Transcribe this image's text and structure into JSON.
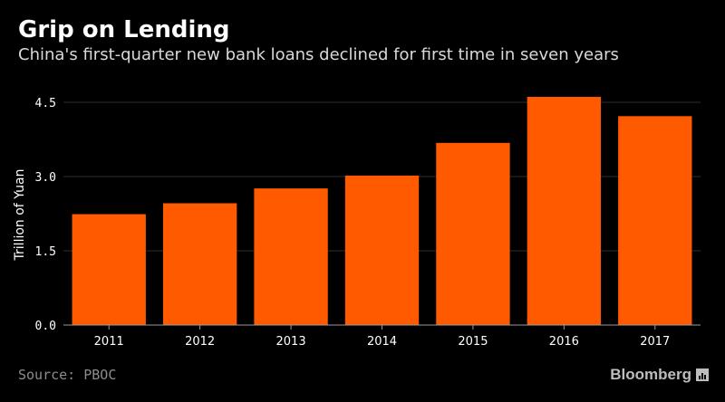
{
  "chart_data": {
    "type": "bar",
    "title": "Grip on Lending",
    "subtitle": "China's first-quarter new bank loans declined for first time in seven years",
    "ylabel": "Trillion of Yuan",
    "xlabel": "",
    "categories": [
      "2011",
      "2012",
      "2013",
      "2014",
      "2015",
      "2016",
      "2017"
    ],
    "values": [
      2.24,
      2.46,
      2.76,
      3.02,
      3.68,
      4.61,
      4.22
    ],
    "ylim": [
      0,
      4.5
    ],
    "yticks": [
      "0.0",
      "1.5",
      "3.0",
      "4.5"
    ],
    "bar_color": "#ff5a00",
    "grid": true
  },
  "footer": {
    "source": "Source: PBOC",
    "brand": "Bloomberg"
  }
}
